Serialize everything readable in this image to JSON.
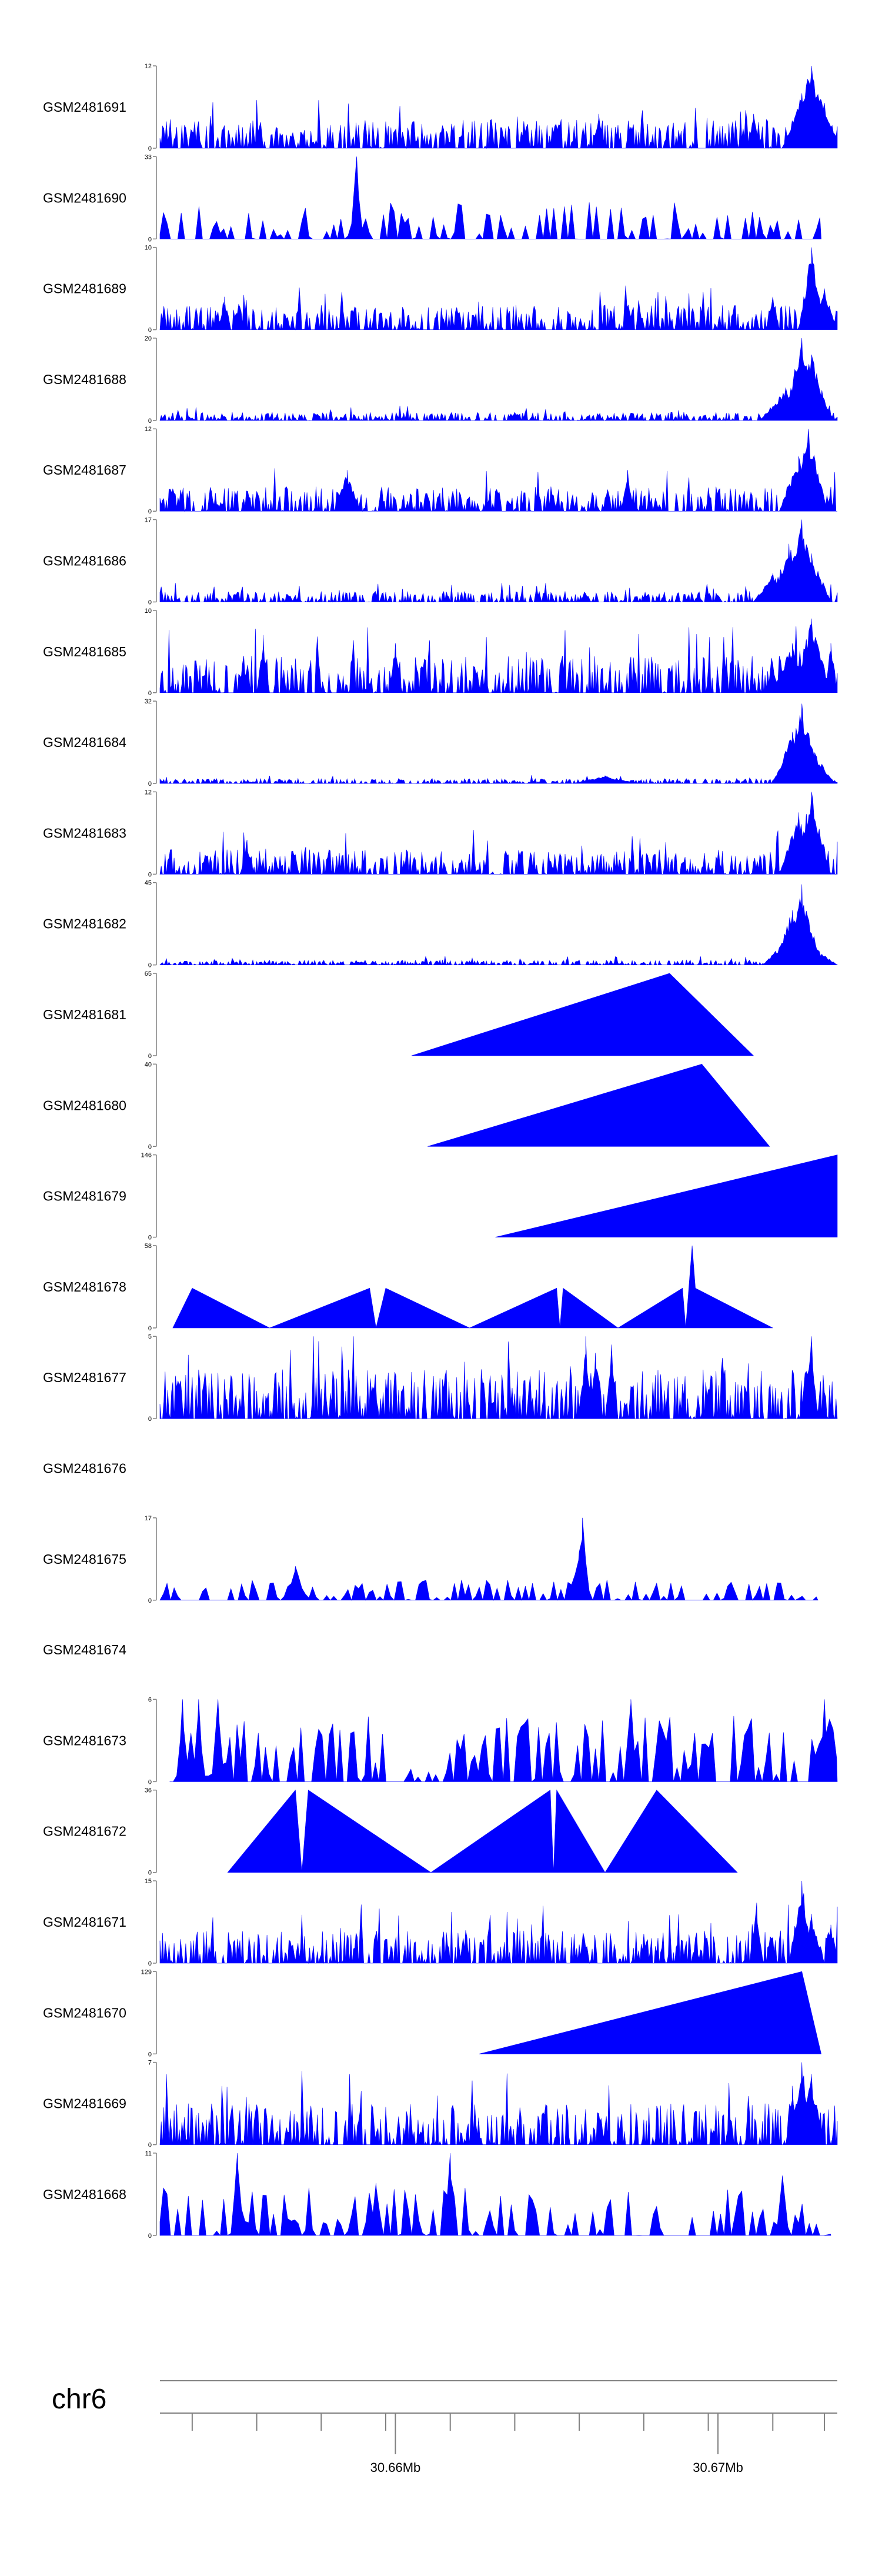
{
  "chart_data": {
    "type": "area",
    "color": "#0000ff",
    "axis_color": "#808080",
    "chromosome": "chr6",
    "x_range": [
      30.6527,
      30.6737
    ],
    "x_unit": "Mb",
    "x_tick_labels": [
      {
        "value": 30.66,
        "label": "30.66Mb"
      },
      {
        "value": 30.67,
        "label": "30.67Mb"
      }
    ],
    "x_minor_ticks": [
      30.6537,
      30.6557,
      30.6577,
      30.6597,
      30.6617,
      30.6637,
      30.6657,
      30.6677,
      30.6697,
      30.6717,
      30.6733
    ],
    "tracks": [
      {
        "name": "GSM2481691",
        "ymax": "12",
        "ylim": 12,
        "pattern": "dense",
        "scale": 0.35,
        "peaks": [
          [
            30.6729,
            12,
            0.00045
          ],
          [
            30.6726,
            8,
            0.0003
          ],
          [
            30.6732,
            7,
            0.0002
          ],
          [
            30.6711,
            5,
            0.0001
          ],
          [
            30.6663,
            5,
            0.0001
          ]
        ],
        "range": [
          30.6527,
          30.6737
        ],
        "seed": 1
      },
      {
        "name": "GSM2481690",
        "ymax": "33",
        "ylim": 33,
        "pattern": "sparse",
        "scale": 0.45,
        "peaks": [
          [
            30.6588,
            33,
            0.0001
          ]
        ],
        "range": [
          30.6527,
          30.6732
        ],
        "seed": 2
      },
      {
        "name": "GSM2481689",
        "ymax": "10",
        "ylim": 10,
        "pattern": "dense",
        "scale": 0.3,
        "peaks": [
          [
            30.6729,
            10,
            0.0002
          ],
          [
            30.6733,
            5,
            0.0002
          ],
          [
            30.6717,
            4,
            0.0001
          ],
          [
            30.6547,
            4,
            0.0001
          ]
        ],
        "range": [
          30.6527,
          30.6737
        ],
        "seed": 3
      },
      {
        "name": "GSM2481688",
        "ymax": "20",
        "ylim": 20,
        "pattern": "dense",
        "scale": 0.1,
        "peaks": [
          [
            30.6726,
            20,
            0.0003
          ],
          [
            30.6729,
            16,
            0.0003
          ],
          [
            30.6721,
            8,
            0.0004
          ],
          [
            30.6732,
            6,
            0.0002
          ]
        ],
        "range": [
          30.6527,
          30.6737
        ],
        "seed": 4
      },
      {
        "name": "GSM2481687",
        "ymax": "12",
        "ylim": 12,
        "pattern": "dense",
        "scale": 0.3,
        "peaks": [
          [
            30.6728,
            12,
            0.0003
          ],
          [
            30.6725,
            8,
            0.0003
          ],
          [
            30.6585,
            6,
            0.0002
          ],
          [
            30.6672,
            6,
            0.0001
          ]
        ],
        "range": [
          30.6527,
          30.6737
        ],
        "seed": 5
      },
      {
        "name": "GSM2481686",
        "ymax": "17",
        "ylim": 17,
        "pattern": "dense",
        "scale": 0.13,
        "peaks": [
          [
            30.6726,
            17,
            0.0003
          ],
          [
            30.6722,
            12,
            0.0003
          ],
          [
            30.6729,
            10,
            0.0003
          ],
          [
            30.6717,
            6,
            0.0003
          ]
        ],
        "range": [
          30.6527,
          30.6737
        ],
        "seed": 6
      },
      {
        "name": "GSM2481685",
        "ymax": "10",
        "ylim": 10,
        "pattern": "dense",
        "scale": 0.45,
        "peaks": [
          [
            30.6559,
            7,
            0.0001
          ],
          [
            30.66,
            6,
            0.0001
          ],
          [
            30.6729,
            9,
            0.0003
          ],
          [
            30.6735,
            6,
            0.0001
          ],
          [
            30.6723,
            6,
            0.0003
          ]
        ],
        "range": [
          30.6527,
          30.6737
        ],
        "seed": 7
      },
      {
        "name": "GSM2481684",
        "ymax": "32",
        "ylim": 32,
        "pattern": "dense",
        "scale": 0.06,
        "peaks": [
          [
            30.6726,
            31,
            0.0003
          ],
          [
            30.6723,
            20,
            0.0003
          ],
          [
            30.673,
            12,
            0.0003
          ],
          [
            30.6665,
            3,
            0.0005
          ]
        ],
        "range": [
          30.6527,
          30.6737
        ],
        "seed": 8
      },
      {
        "name": "GSM2481683",
        "ymax": "12",
        "ylim": 12,
        "pattern": "dense",
        "scale": 0.3,
        "peaks": [
          [
            30.6729,
            12,
            0.0003
          ],
          [
            30.6725,
            9,
            0.0003
          ],
          [
            30.6554,
            5,
            0.0001
          ]
        ],
        "range": [
          30.6527,
          30.6737
        ],
        "seed": 9
      },
      {
        "name": "GSM2481682",
        "ymax": "45",
        "ylim": 45,
        "pattern": "dense",
        "scale": 0.06,
        "peaks": [
          [
            30.6726,
            44,
            0.0003
          ],
          [
            30.6723,
            30,
            0.0003
          ],
          [
            30.672,
            12,
            0.0003
          ],
          [
            30.6731,
            8,
            0.0003
          ]
        ],
        "range": [
          30.6527,
          30.6737
        ],
        "seed": 10
      },
      {
        "name": "GSM2481681",
        "ymax": "65",
        "ylim": 65,
        "points": [
          [
            30.6605,
            0
          ],
          [
            30.6685,
            65
          ],
          [
            30.6711,
            0
          ]
        ]
      },
      {
        "name": "GSM2481680",
        "ymax": "40",
        "ylim": 40,
        "points": [
          [
            30.661,
            0
          ],
          [
            30.6695,
            40
          ],
          [
            30.6716,
            0
          ]
        ]
      },
      {
        "name": "GSM2481679",
        "ymax": "146",
        "ylim": 146,
        "points": [
          [
            30.6631,
            0
          ],
          [
            30.6737,
            146
          ],
          [
            30.6737,
            0
          ]
        ]
      },
      {
        "name": "GSM2481678",
        "ymax": "58",
        "ylim": 58,
        "points": [
          [
            30.6531,
            0
          ],
          [
            30.6537,
            28
          ],
          [
            30.6561,
            0
          ],
          [
            30.6592,
            28
          ],
          [
            30.6594,
            0
          ],
          [
            30.6597,
            28
          ],
          [
            30.6623,
            0
          ],
          [
            30.665,
            28
          ],
          [
            30.6651,
            0
          ],
          [
            30.6652,
            28
          ],
          [
            30.6669,
            0
          ],
          [
            30.6689,
            28
          ],
          [
            30.669,
            0
          ],
          [
            30.6692,
            58
          ],
          [
            30.6693,
            28
          ],
          [
            30.6717,
            0
          ]
        ]
      },
      {
        "name": "GSM2481677",
        "ymax": "5",
        "ylim": 5,
        "pattern": "dense",
        "scale": 0.6,
        "peaks": [
          [
            30.6659,
            5,
            0.0001
          ],
          [
            30.6667,
            4.5,
            0.0001
          ],
          [
            30.6729,
            5,
            0.0001
          ],
          [
            30.6662,
            4,
            0.0001
          ]
        ],
        "range": [
          30.6527,
          30.6737
        ],
        "seed": 11
      },
      {
        "name": "GSM2481676",
        "ymax": "",
        "ylim": 1,
        "empty": true
      },
      {
        "name": "GSM2481675",
        "ymax": "17",
        "ylim": 17,
        "pattern": "sparse",
        "scale": 0.25,
        "peaks": [
          [
            30.6658,
            17,
            0.0001
          ],
          [
            30.6657,
            10,
            0.0002
          ],
          [
            30.6569,
            7,
            0.0002
          ]
        ],
        "range": [
          30.6527,
          30.6731
        ],
        "seed": 12
      },
      {
        "name": "GSM2481674",
        "ymax": "",
        "ylim": 1,
        "empty": true
      },
      {
        "name": "GSM2481673",
        "ymax": "6",
        "ylim": 6,
        "pattern": "sparse",
        "scale": 0.8,
        "peaks": [
          [
            30.6534,
            6,
            0.0001
          ],
          [
            30.6539,
            6,
            0.0001
          ],
          [
            30.6545,
            6,
            0.0001
          ],
          [
            30.6673,
            6,
            0.0001
          ],
          [
            30.6733,
            6,
            0.0001
          ]
        ],
        "range": [
          30.653,
          30.6737
        ],
        "seed": 13
      },
      {
        "name": "GSM2481672",
        "ymax": "36",
        "ylim": 36,
        "points": [
          [
            30.6548,
            0
          ],
          [
            30.6569,
            36
          ],
          [
            30.6571,
            0
          ],
          [
            30.6573,
            36
          ],
          [
            30.6611,
            0
          ],
          [
            30.6648,
            36
          ],
          [
            30.6649,
            0
          ],
          [
            30.665,
            36
          ],
          [
            30.6665,
            0
          ],
          [
            30.6681,
            36
          ],
          [
            30.6706,
            0
          ]
        ]
      },
      {
        "name": "GSM2481671",
        "ymax": "15",
        "ylim": 15,
        "pattern": "dense",
        "scale": 0.4,
        "peaks": [
          [
            30.6726,
            15,
            0.0002
          ],
          [
            30.6729,
            9,
            0.0002
          ],
          [
            30.6712,
            11,
            0.0001
          ],
          [
            30.6735,
            7,
            0.0001
          ]
        ],
        "range": [
          30.6527,
          30.6737
        ],
        "seed": 14
      },
      {
        "name": "GSM2481670",
        "ymax": "129",
        "ylim": 129,
        "points": [
          [
            30.6626,
            0
          ],
          [
            30.6726,
            129
          ],
          [
            30.6732,
            0
          ]
        ]
      },
      {
        "name": "GSM2481669",
        "ymax": "7",
        "ylim": 7,
        "pattern": "dense",
        "scale": 0.5,
        "peaks": [
          [
            30.6726,
            7,
            0.0002
          ],
          [
            30.6729,
            6,
            0.0002
          ],
          [
            30.6723,
            5,
            0.0001
          ]
        ],
        "range": [
          30.6527,
          30.6737
        ],
        "seed": 15
      },
      {
        "name": "GSM2481668",
        "ymax": "11",
        "ylim": 11,
        "pattern": "sparse",
        "scale": 0.6,
        "peaks": [
          [
            30.6551,
            11,
            0.0001
          ],
          [
            30.6617,
            11,
            0.0001
          ],
          [
            30.6594,
            7,
            0.0001
          ],
          [
            30.672,
            8,
            0.0001
          ]
        ],
        "range": [
          30.6527,
          30.6735
        ],
        "seed": 16
      }
    ]
  }
}
